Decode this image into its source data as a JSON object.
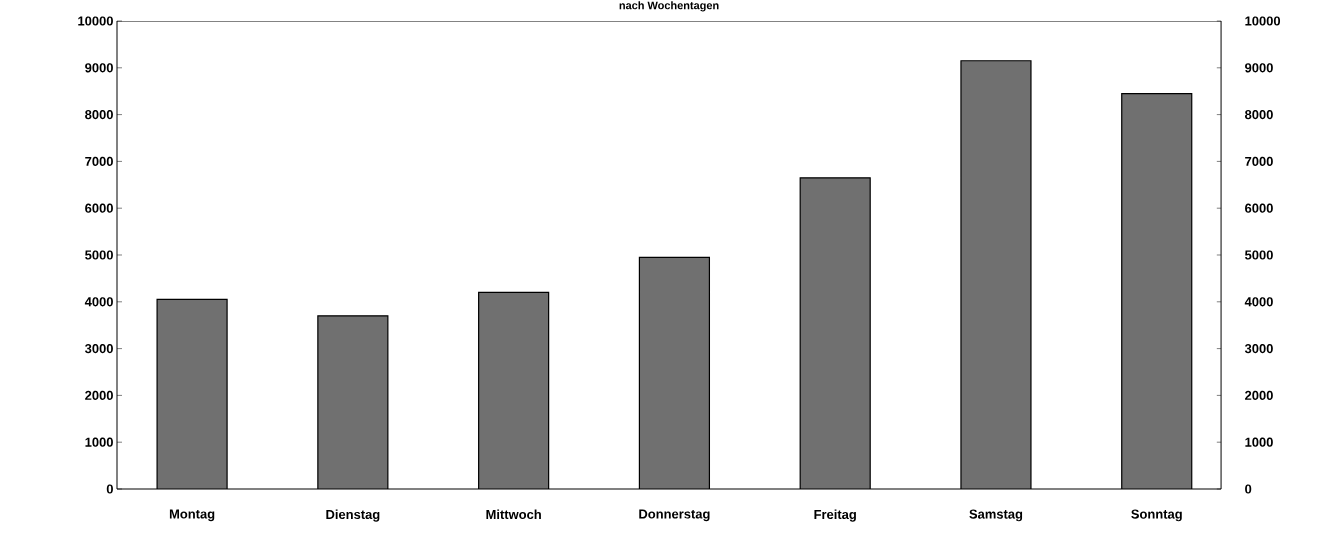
{
  "chart_data": {
    "type": "bar",
    "title": "nach Wochentagen",
    "categories": [
      "Montag",
      "Dienstag",
      "Mittwoch",
      "Donnerstag",
      "Freitag",
      "Samstag",
      "Sonntag"
    ],
    "values": [
      4050,
      3700,
      4200,
      4950,
      6650,
      9150,
      8450
    ],
    "color": "#707070",
    "ylim": [
      0,
      10000
    ],
    "yticks": [
      0,
      1000,
      2000,
      3000,
      4000,
      5000,
      6000,
      7000,
      8000,
      9000,
      10000
    ],
    "y2lim": [
      0,
      10000
    ],
    "y2ticks": [
      0,
      1000,
      2000,
      3000,
      4000,
      5000,
      6000,
      7000,
      8000,
      9000,
      10000
    ],
    "grid": false
  }
}
